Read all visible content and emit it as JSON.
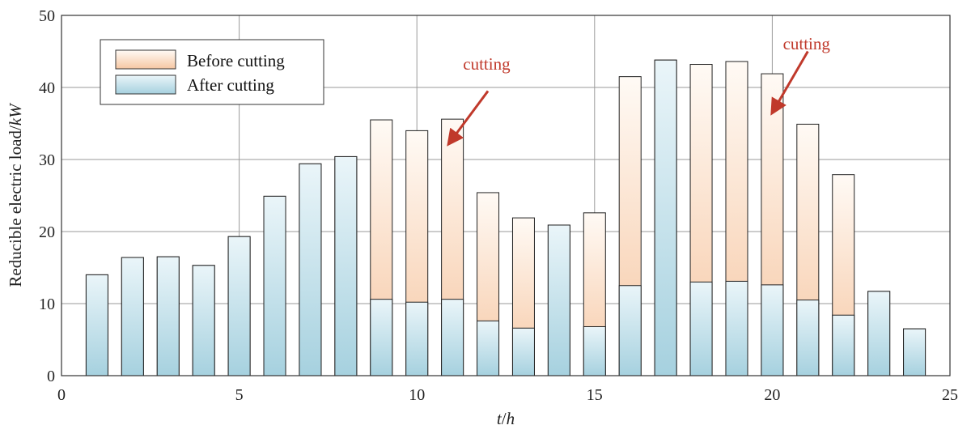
{
  "chart_data": {
    "type": "bar",
    "xlabel_var": "t",
    "xlabel_unit": "h",
    "ylabel_text": "Reducible electric load/",
    "ylabel_unit": "kW",
    "xlim": [
      0,
      25
    ],
    "ylim": [
      0,
      50
    ],
    "xticks": [
      0,
      5,
      10,
      15,
      20,
      25
    ],
    "yticks": [
      0,
      10,
      20,
      30,
      40,
      50
    ],
    "grid": true,
    "legend_position": "top-left",
    "x": [
      1,
      2,
      3,
      4,
      5,
      6,
      7,
      8,
      9,
      10,
      11,
      12,
      13,
      14,
      15,
      16,
      17,
      18,
      19,
      20,
      21,
      22,
      23,
      24
    ],
    "series": [
      {
        "name": "Before cutting",
        "color_top": "#fffaf5",
        "color_bottom": "#f6c7a3",
        "values": [
          14.0,
          16.4,
          16.5,
          15.3,
          19.3,
          24.9,
          29.4,
          30.4,
          35.5,
          34.0,
          35.6,
          25.4,
          21.9,
          20.9,
          22.6,
          41.5,
          43.8,
          43.2,
          43.6,
          41.9,
          34.9,
          27.9,
          11.7,
          6.5
        ]
      },
      {
        "name": "After cutting",
        "color_top": "#eaf5f9",
        "color_bottom": "#a6d1df",
        "values": [
          14.0,
          16.4,
          16.5,
          15.3,
          19.3,
          24.9,
          29.4,
          30.4,
          10.6,
          10.2,
          10.6,
          7.6,
          6.6,
          20.9,
          6.8,
          12.5,
          43.8,
          13.0,
          13.1,
          12.6,
          10.5,
          8.4,
          11.7,
          6.5
        ]
      }
    ],
    "annotations": [
      {
        "text": "cutting",
        "text_x": 11.3,
        "text_y": 42.5,
        "arrow_from": [
          12.0,
          39.5
        ],
        "arrow_to": [
          10.9,
          32.2
        ],
        "color": "#c0392b"
      },
      {
        "text": "cutting",
        "text_x": 20.3,
        "text_y": 45.3,
        "arrow_from": [
          21.0,
          45.0
        ],
        "arrow_to": [
          20.0,
          36.5
        ],
        "color": "#c0392b"
      }
    ]
  }
}
